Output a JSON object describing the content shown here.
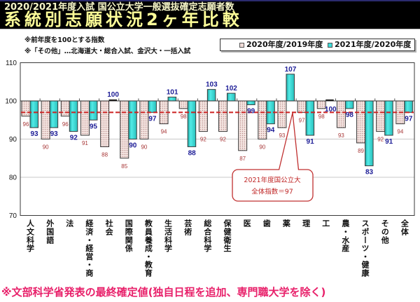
{
  "header": {
    "subtitle": "2020/2021年度入試 国公立大学一般選抜確定志願者数",
    "title": "系統別志願状況2ヶ年比較"
  },
  "notes": [
    "※前年度を100とする指数",
    "※「その他」…北海道大・総合入試、金沢大・一括入試"
  ],
  "footer": "※文部科学省発表の最終確定値(独自日程を追加、専門職大学を除く)",
  "colors": {
    "series_2020": "#f3e3df",
    "series_2021": "#3ddcd8",
    "reference_line": "#cc2222",
    "footer": "#e8206a",
    "title": "#ffff99",
    "label_2020": "#a83838",
    "label_2021": "#1c1c96"
  },
  "chart_data": {
    "type": "bar",
    "title": "系統別志願状況2ヶ年比較",
    "xlabel": "",
    "ylabel": "",
    "categories": [
      "人文科学",
      "外国語",
      "法",
      "経済・経営・商",
      "社会",
      "国際関係",
      "教員養成・教育",
      "生活科学",
      "芸術",
      "総合科学",
      "保健衛生",
      "医",
      "歯",
      "薬",
      "理",
      "工",
      "農・水産",
      "スポーツ・健康",
      "その他",
      "全体"
    ],
    "series": [
      {
        "name": "2020年度/2019年度",
        "values": [
          96,
          90,
          96,
          91,
          88,
          85,
          90,
          94,
          98,
          92,
          92,
          87,
          90,
          93,
          97,
          98,
          93,
          89,
          92,
          94
        ]
      },
      {
        "name": "2021年度/2020年度",
        "values": [
          93,
          93,
          92,
          95,
          100,
          90,
          97,
          101,
          88,
          103,
          102,
          99,
          94,
          107,
          91,
          100,
          98,
          83,
          91,
          97
        ]
      }
    ],
    "ylim": [
      70,
      110
    ],
    "yticks": [
      110,
      100,
      90,
      80,
      70
    ],
    "baseline": 100,
    "grid": true,
    "legend_position": "top-right",
    "reference_line": {
      "value": 97
    },
    "annotation": {
      "lines": [
        "2021年度国公立大",
        "全体指数＝97"
      ],
      "target_category": "薬"
    }
  }
}
